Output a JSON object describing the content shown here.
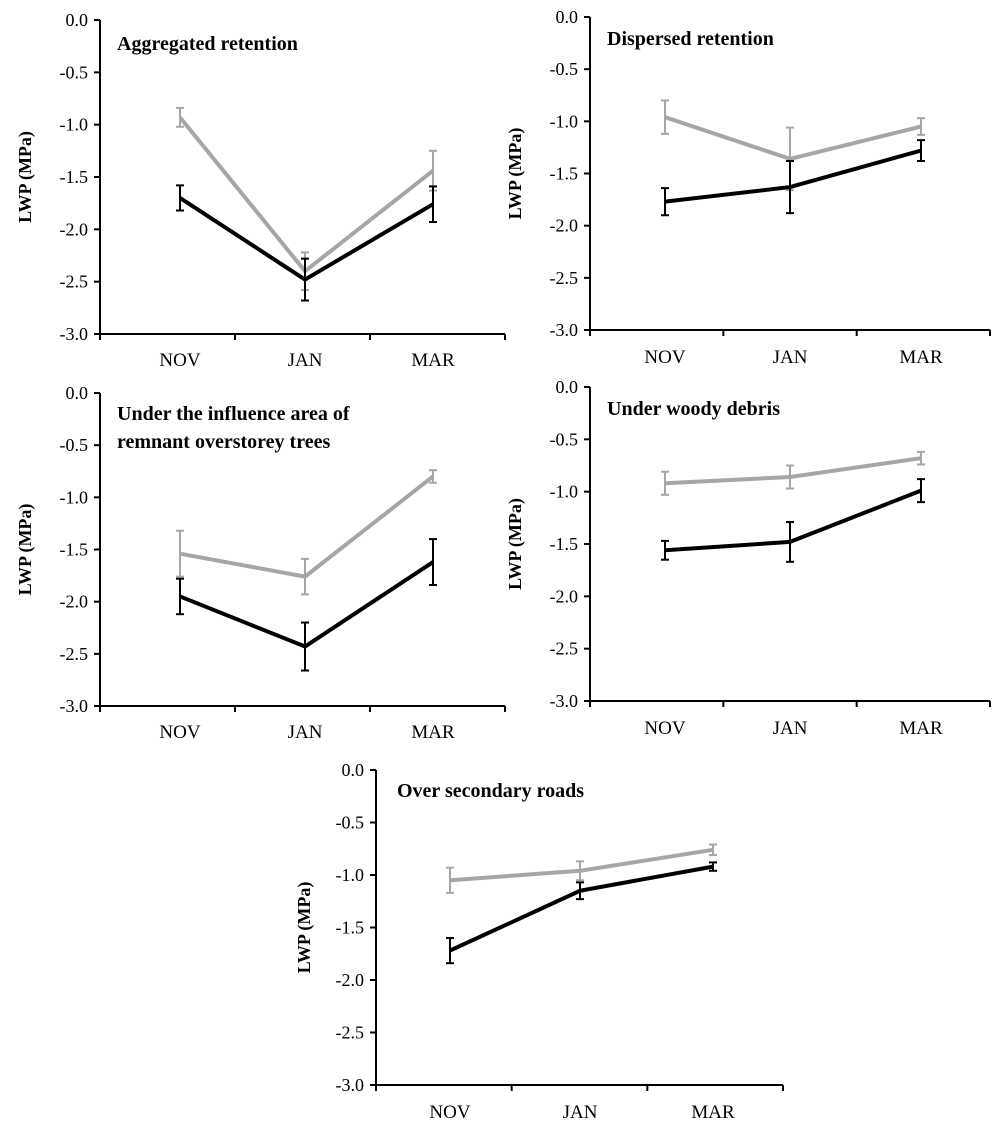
{
  "colors": {
    "series_dark": "#000000",
    "series_light": "#a6a6a6",
    "axis": "#000000"
  },
  "chart_data": [
    {
      "type": "line",
      "title": "Aggregated retention",
      "ylabel": "LWP (MPa)",
      "categories": [
        "NOV",
        "JAN",
        "MAR"
      ],
      "ylim": [
        -3.0,
        0.0
      ],
      "yticks": [
        "0.0",
        "-0.5",
        "-1.0",
        "-1.5",
        "-2.0",
        "-2.5",
        "-3.0"
      ],
      "grid": false,
      "series": [
        {
          "color": "#a6a6a6",
          "values": [
            -0.93,
            -2.4,
            -1.44
          ],
          "errors": [
            0.09,
            0.18,
            0.19
          ]
        },
        {
          "color": "#000000",
          "values": [
            -1.7,
            -2.48,
            -1.76
          ],
          "errors": [
            0.12,
            0.2,
            0.17
          ]
        }
      ]
    },
    {
      "type": "line",
      "title": "Dispersed retention",
      "ylabel": "LWP (MPa)",
      "categories": [
        "NOV",
        "JAN",
        "MAR"
      ],
      "ylim": [
        -3.0,
        0.0
      ],
      "yticks": [
        "0.0",
        "-0.5",
        "-1.0",
        "-1.5",
        "-2.0",
        "-2.5",
        "-3.0"
      ],
      "grid": false,
      "series": [
        {
          "color": "#a6a6a6",
          "values": [
            -0.96,
            -1.36,
            -1.05
          ],
          "errors": [
            0.16,
            0.3,
            0.08
          ]
        },
        {
          "color": "#000000",
          "values": [
            -1.77,
            -1.63,
            -1.28
          ],
          "errors": [
            0.13,
            0.25,
            0.1
          ]
        }
      ]
    },
    {
      "type": "line",
      "title": "Under the influence area of remnant overstorey trees",
      "title_lines": [
        "Under the influence area of",
        "remnant overstorey trees"
      ],
      "ylabel": "LWP (MPa)",
      "categories": [
        "NOV",
        "JAN",
        "MAR"
      ],
      "ylim": [
        -3.0,
        0.0
      ],
      "yticks": [
        "0.0",
        "-0.5",
        "-1.0",
        "-1.5",
        "-2.0",
        "-2.5",
        "-3.0"
      ],
      "grid": false,
      "series": [
        {
          "color": "#a6a6a6",
          "values": [
            -1.54,
            -1.76,
            -0.8
          ],
          "errors": [
            0.22,
            0.17,
            0.06
          ]
        },
        {
          "color": "#000000",
          "values": [
            -1.95,
            -2.43,
            -1.62
          ],
          "errors": [
            0.17,
            0.23,
            0.22
          ]
        }
      ]
    },
    {
      "type": "line",
      "title": "Under woody debris",
      "ylabel": "LWP (MPa)",
      "categories": [
        "NOV",
        "JAN",
        "MAR"
      ],
      "ylim": [
        -3.0,
        0.0
      ],
      "yticks": [
        "0.0",
        "-0.5",
        "-1.0",
        "-1.5",
        "-2.0",
        "-2.5",
        "-3.0"
      ],
      "grid": false,
      "series": [
        {
          "color": "#a6a6a6",
          "values": [
            -0.92,
            -0.86,
            -0.68
          ],
          "errors": [
            0.11,
            0.11,
            0.06
          ]
        },
        {
          "color": "#000000",
          "values": [
            -1.56,
            -1.48,
            -0.99
          ],
          "errors": [
            0.09,
            0.19,
            0.11
          ]
        }
      ]
    },
    {
      "type": "line",
      "title": "Over secondary roads",
      "ylabel": "LWP (MPa)",
      "categories": [
        "NOV",
        "JAN",
        "MAR"
      ],
      "ylim": [
        -3.0,
        0.0
      ],
      "yticks": [
        "0.0",
        "-0.5",
        "-1.0",
        "-1.5",
        "-2.0",
        "-2.5",
        "-3.0"
      ],
      "grid": false,
      "series": [
        {
          "color": "#a6a6a6",
          "values": [
            -1.05,
            -0.96,
            -0.76
          ],
          "errors": [
            0.12,
            0.09,
            0.05
          ]
        },
        {
          "color": "#000000",
          "values": [
            -1.72,
            -1.15,
            -0.92
          ],
          "errors": [
            0.12,
            0.08,
            0.04
          ]
        }
      ]
    }
  ]
}
